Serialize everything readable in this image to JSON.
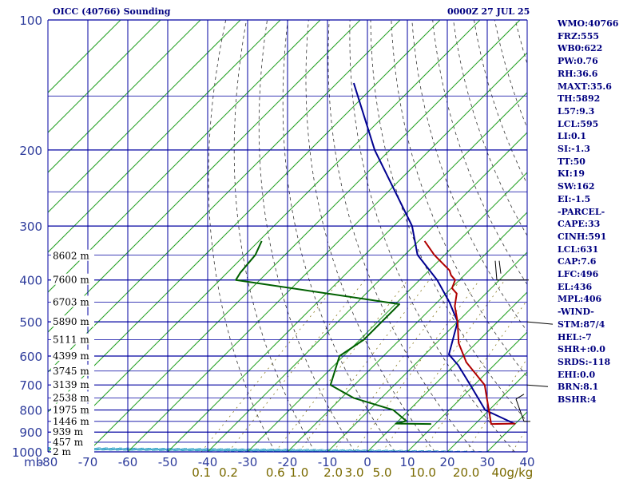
{
  "header": {
    "title_left": "OICC (40766) Sounding",
    "title_right": "0000Z 27 JUL 25"
  },
  "indices": [
    "WMO:40766",
    "FRZ:555",
    "WB0:622",
    "PW:0.76",
    "RH:36.6",
    "MAXT:35.6",
    "TH:5892",
    "L57:9.3",
    "LCL:595",
    "LI:0.1",
    "SI:-1.3",
    "TT:50",
    "KI:19",
    "SW:162",
    "EI:-1.5",
    "-PARCEL-",
    "CAPE:33",
    "CINH:591",
    "LCL:631",
    "CAP:7.6",
    "LFC:496",
    "EL:436",
    "MPL:406",
    "-WIND-",
    "STM:87/4",
    "HEL:-7",
    "SHR+:0.0",
    "SRDS:-118",
    "EHI:0.0",
    "BRN:8.1",
    "BSHR:4"
  ],
  "chart_data": {
    "type": "line",
    "title": "OICC (40766) Sounding",
    "y_axis": {
      "unit_label": "mb",
      "scale": "log-pressure",
      "range": [
        1000,
        100
      ],
      "ticks": [
        100,
        200,
        300,
        400,
        500,
        600,
        700,
        800,
        900,
        1000
      ],
      "tick_labels": [
        "100",
        "200",
        "300",
        "400",
        "500",
        "600",
        "700",
        "800",
        "900",
        "1000"
      ]
    },
    "x_axis": {
      "quantity": "temperature (°C, skewed)",
      "range": [
        -80,
        40
      ],
      "ticks": [
        -80,
        -70,
        -60,
        -50,
        -40,
        -30,
        -20,
        -10,
        0,
        10,
        20,
        30,
        40
      ],
      "tick_labels": [
        "-80",
        "-70",
        "-60",
        "-50",
        "-40",
        "-30",
        "-20",
        "-10",
        "0",
        "10",
        "20",
        "30",
        "40"
      ]
    },
    "mixing_ratio_labels": [
      "0.1",
      "0.2",
      "0.6",
      "1.0",
      "2.0",
      "3.0",
      "5.0",
      "10.0",
      "20.0",
      "40g/kg"
    ],
    "height_labels": [
      {
        "p": 352,
        "label": "8602 m"
      },
      {
        "p": 400,
        "label": "7600 m"
      },
      {
        "p": 450,
        "label": "6703 m"
      },
      {
        "p": 500,
        "label": "5890 m"
      },
      {
        "p": 550,
        "label": "5111 m"
      },
      {
        "p": 600,
        "label": "4399 m"
      },
      {
        "p": 650,
        "label": "3745 m"
      },
      {
        "p": 700,
        "label": "3139 m"
      },
      {
        "p": 750,
        "label": "2538 m"
      },
      {
        "p": 800,
        "label": "1975 m"
      },
      {
        "p": 850,
        "label": "1446 m"
      },
      {
        "p": 900,
        "label": "939 m"
      },
      {
        "p": 950,
        "label": "457 m"
      },
      {
        "p": 1000,
        "label": "2 m"
      }
    ],
    "grid": true,
    "series": [
      {
        "role": "temperature",
        "color": "#b00000",
        "points": [
          {
            "p": 860,
            "t": 30.0
          },
          {
            "p": 862,
            "t": 24.0
          },
          {
            "p": 700,
            "t": 12.6
          },
          {
            "p": 620,
            "t": 2.3
          },
          {
            "p": 560,
            "t": -4.4
          },
          {
            "p": 500,
            "t": -10.0
          },
          {
            "p": 460,
            "t": -14.6
          },
          {
            "p": 430,
            "t": -17.3
          },
          {
            "p": 418,
            "t": -19.8
          },
          {
            "p": 400,
            "t": -21.1
          },
          {
            "p": 390,
            "t": -23.3
          },
          {
            "p": 380,
            "t": -24.9
          },
          {
            "p": 350,
            "t": -32.6
          },
          {
            "p": 325,
            "t": -38.5
          }
        ]
      },
      {
        "role": "dewpoint",
        "color": "#006000",
        "points": [
          {
            "p": 862,
            "t": 9.0
          },
          {
            "p": 860,
            "t": 0.0
          },
          {
            "p": 848,
            "t": 2.0
          },
          {
            "p": 800,
            "t": -4.0
          },
          {
            "p": 750,
            "t": -17.0
          },
          {
            "p": 700,
            "t": -26.0
          },
          {
            "p": 600,
            "t": -31.0
          },
          {
            "p": 550,
            "t": -29.0
          },
          {
            "p": 455,
            "t": -29.0
          },
          {
            "p": 400,
            "t": -76.0
          },
          {
            "p": 385,
            "t": -76.7
          },
          {
            "p": 350,
            "t": -77.4
          },
          {
            "p": 325,
            "t": -79.3
          }
        ]
      },
      {
        "role": "parcel",
        "color": "#000090",
        "points": [
          {
            "p": 862,
            "t": 30.0
          },
          {
            "p": 800,
            "t": 19.0
          },
          {
            "p": 700,
            "t": 9.0
          },
          {
            "p": 630,
            "t": 1.0
          },
          {
            "p": 595,
            "t": -4.0
          },
          {
            "p": 500,
            "t": -10.0
          },
          {
            "p": 450,
            "t": -17.0
          },
          {
            "p": 400,
            "t": -25.6
          },
          {
            "p": 350,
            "t": -36.8
          },
          {
            "p": 300,
            "t": -45.4
          },
          {
            "p": 200,
            "t": -73.8
          },
          {
            "p": 140,
            "t": -95.8
          }
        ]
      }
    ],
    "wind_barbs": [
      {
        "p": 400,
        "speed_kt": 10
      },
      {
        "p": 500,
        "speed_kt": 10
      },
      {
        "p": 700,
        "speed_kt": 5
      },
      {
        "p": 850,
        "speed_kt": 5
      }
    ]
  }
}
